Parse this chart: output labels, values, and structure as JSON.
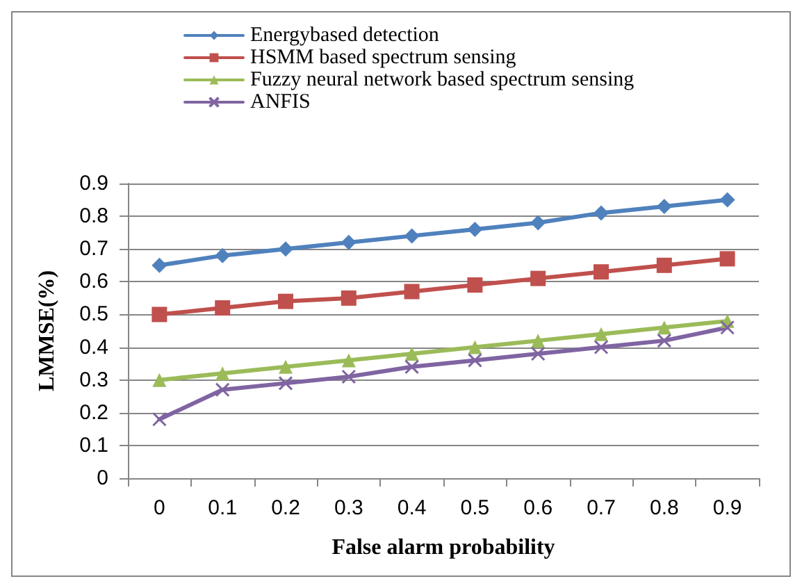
{
  "chart_data": {
    "type": "line",
    "xlabel": "False alarm probability",
    "ylabel": "LMMSE(%)",
    "categories": [
      "0",
      "0.1",
      "0.2",
      "0.3",
      "0.4",
      "0.5",
      "0.6",
      "0.7",
      "0.8",
      "0.9"
    ],
    "series": [
      {
        "name": "Energybased detection",
        "color": "#4f81bd",
        "marker": "diamond",
        "values": [
          0.65,
          0.68,
          0.7,
          0.72,
          0.74,
          0.76,
          0.78,
          0.81,
          0.83,
          0.85
        ]
      },
      {
        "name": "HSMM based spectrum sensing",
        "color": "#c0504d",
        "marker": "square",
        "values": [
          0.5,
          0.52,
          0.54,
          0.55,
          0.57,
          0.59,
          0.61,
          0.63,
          0.65,
          0.67
        ]
      },
      {
        "name": "Fuzzy neural network based spectrum sensing",
        "color": "#9bbb59",
        "marker": "triangle",
        "values": [
          0.3,
          0.32,
          0.34,
          0.36,
          0.38,
          0.4,
          0.42,
          0.44,
          0.46,
          0.48
        ]
      },
      {
        "name": "ANFIS",
        "color": "#8064a2",
        "marker": "cross",
        "values": [
          0.18,
          0.27,
          0.29,
          0.31,
          0.34,
          0.36,
          0.38,
          0.4,
          0.42,
          0.46
        ]
      }
    ],
    "ylim": [
      0,
      0.9
    ],
    "yticks": [
      0,
      0.1,
      0.2,
      0.3,
      0.4,
      0.5,
      0.6,
      0.7,
      0.8,
      0.9
    ],
    "grid": "y",
    "legend": "top"
  }
}
